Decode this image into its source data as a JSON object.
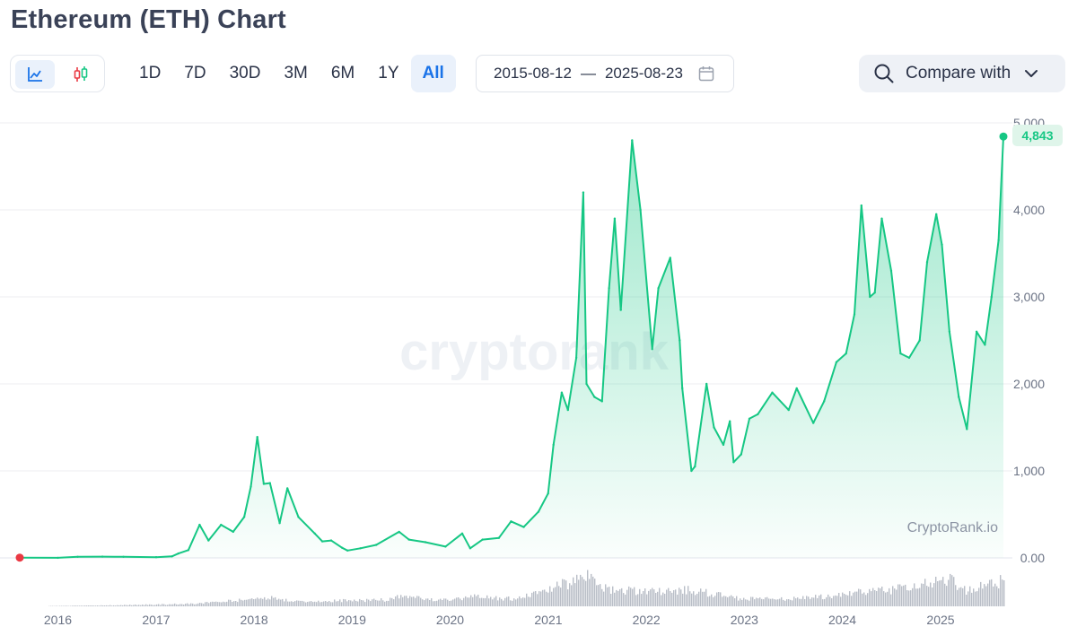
{
  "header": {
    "title": "Ethereum (ETH) Chart"
  },
  "toolbar": {
    "chart_types": [
      {
        "icon": "line-chart-icon",
        "active": true
      },
      {
        "icon": "candlestick-icon",
        "active": false
      }
    ],
    "ranges": [
      "1D",
      "7D",
      "30D",
      "3M",
      "6M",
      "1Y",
      "All"
    ],
    "active_range": "All",
    "date_from": "2015-08-12",
    "date_sep": "—",
    "date_to": "2025-08-23",
    "calendar_icon": "calendar-icon",
    "compare_label": "Compare with",
    "compare_icon": "search-icon",
    "compare_chevron": "chevron-down-icon"
  },
  "colors": {
    "line": "#16c784",
    "start_marker": "#ea3943",
    "accent": "#1a73e8",
    "volume": "#b9bec7"
  },
  "chart_data": {
    "type": "area",
    "title": "",
    "xlabel": "",
    "ylabel": "",
    "ylim": [
      0,
      5000
    ],
    "x_range": [
      "2015-08-12",
      "2025-08-23"
    ],
    "y_ticks": [
      {
        "value": 0,
        "label": "0.00"
      },
      {
        "value": 1000,
        "label": "1,000"
      },
      {
        "value": 2000,
        "label": "2,000"
      },
      {
        "value": 3000,
        "label": "3,000"
      },
      {
        "value": 4000,
        "label": "4,000"
      },
      {
        "value": 5000,
        "label": "5,000"
      }
    ],
    "x_ticks": [
      {
        "date": "2016-01-01",
        "label": "2016"
      },
      {
        "date": "2017-01-01",
        "label": "2017"
      },
      {
        "date": "2018-01-01",
        "label": "2018"
      },
      {
        "date": "2019-01-01",
        "label": "2019"
      },
      {
        "date": "2020-01-01",
        "label": "2020"
      },
      {
        "date": "2021-01-01",
        "label": "2021"
      },
      {
        "date": "2022-01-01",
        "label": "2022"
      },
      {
        "date": "2023-01-01",
        "label": "2023"
      },
      {
        "date": "2024-01-01",
        "label": "2024"
      },
      {
        "date": "2025-01-01",
        "label": "2025"
      }
    ],
    "last_value_label": "4,843",
    "watermark": "cryptorank",
    "credit": "CryptoRank.io",
    "grid": true,
    "series": [
      {
        "x": [
          "2015-08-12",
          "2016-01-01",
          "2016-03-15",
          "2016-06-15",
          "2016-09-01",
          "2017-01-01",
          "2017-03-01",
          "2017-03-25",
          "2017-05-01",
          "2017-06-12",
          "2017-07-15",
          "2017-08-31",
          "2017-10-15",
          "2017-11-25",
          "2017-12-20",
          "2018-01-13",
          "2018-02-06",
          "2018-03-01",
          "2018-04-06",
          "2018-05-05",
          "2018-06-15",
          "2018-08-15",
          "2018-09-12",
          "2018-10-15",
          "2018-11-25",
          "2018-12-15",
          "2019-02-01",
          "2019-04-01",
          "2019-06-25",
          "2019-08-01",
          "2019-10-01",
          "2019-12-15",
          "2020-02-15",
          "2020-03-16",
          "2020-05-01",
          "2020-07-01",
          "2020-08-15",
          "2020-10-01",
          "2020-11-25",
          "2020-12-31",
          "2021-01-20",
          "2021-02-20",
          "2021-03-15",
          "2021-04-15",
          "2021-05-11",
          "2021-05-23",
          "2021-06-22",
          "2021-07-20",
          "2021-08-15",
          "2021-09-05",
          "2021-09-28",
          "2021-11-09",
          "2021-12-10",
          "2022-01-23",
          "2022-02-15",
          "2022-03-31",
          "2022-05-05",
          "2022-05-15",
          "2022-06-18",
          "2022-07-01",
          "2022-08-13",
          "2022-09-10",
          "2022-10-15",
          "2022-11-08",
          "2022-11-22",
          "2022-12-20",
          "2023-01-20",
          "2023-02-20",
          "2023-04-15",
          "2023-06-15",
          "2023-07-15",
          "2023-09-15",
          "2023-10-25",
          "2023-12-10",
          "2024-01-15",
          "2024-02-15",
          "2024-03-12",
          "2024-04-13",
          "2024-05-01",
          "2024-05-27",
          "2024-07-01",
          "2024-08-05",
          "2024-09-06",
          "2024-10-15",
          "2024-11-12",
          "2024-12-16",
          "2025-01-06",
          "2025-02-03",
          "2025-03-10",
          "2025-04-09",
          "2025-05-15",
          "2025-06-15",
          "2025-07-10",
          "2025-08-05",
          "2025-08-23"
        ],
        "y": [
          3,
          1,
          12,
          14,
          12,
          8,
          18,
          50,
          90,
          380,
          200,
          380,
          300,
          470,
          820,
          1390,
          850,
          860,
          400,
          800,
          470,
          280,
          190,
          200,
          115,
          85,
          110,
          150,
          300,
          210,
          180,
          130,
          280,
          110,
          210,
          230,
          420,
          355,
          530,
          740,
          1300,
          1900,
          1700,
          2300,
          4200,
          2000,
          1850,
          1800,
          3100,
          3900,
          2850,
          4800,
          4000,
          2400,
          3100,
          3450,
          2500,
          1950,
          1000,
          1050,
          2000,
          1500,
          1300,
          1570,
          1100,
          1190,
          1600,
          1650,
          1900,
          1700,
          1950,
          1550,
          1800,
          2250,
          2350,
          2800,
          4050,
          3000,
          3050,
          3900,
          3300,
          2350,
          2300,
          2500,
          3400,
          3950,
          3600,
          2600,
          1850,
          1480,
          2600,
          2450,
          3000,
          3650,
          4843
        ]
      }
    ],
    "volume": {
      "x": [
        "2015-08-12",
        "2016-06-01",
        "2017-05-01",
        "2017-12-01",
        "2018-02-01",
        "2018-06-01",
        "2019-05-01",
        "2019-07-01",
        "2020-01-01",
        "2020-03-15",
        "2020-09-01",
        "2021-01-15",
        "2021-05-15",
        "2021-08-01",
        "2022-01-15",
        "2022-06-15",
        "2022-12-01",
        "2023-06-01",
        "2023-11-01",
        "2024-03-15",
        "2024-08-05",
        "2024-12-01",
        "2025-02-01",
        "2025-04-01",
        "2025-08-10"
      ],
      "y": [
        0,
        1,
        3,
        8,
        12,
        6,
        8,
        12,
        7,
        12,
        9,
        22,
        38,
        22,
        18,
        20,
        10,
        9,
        12,
        18,
        22,
        30,
        34,
        20,
        32
      ]
    }
  }
}
